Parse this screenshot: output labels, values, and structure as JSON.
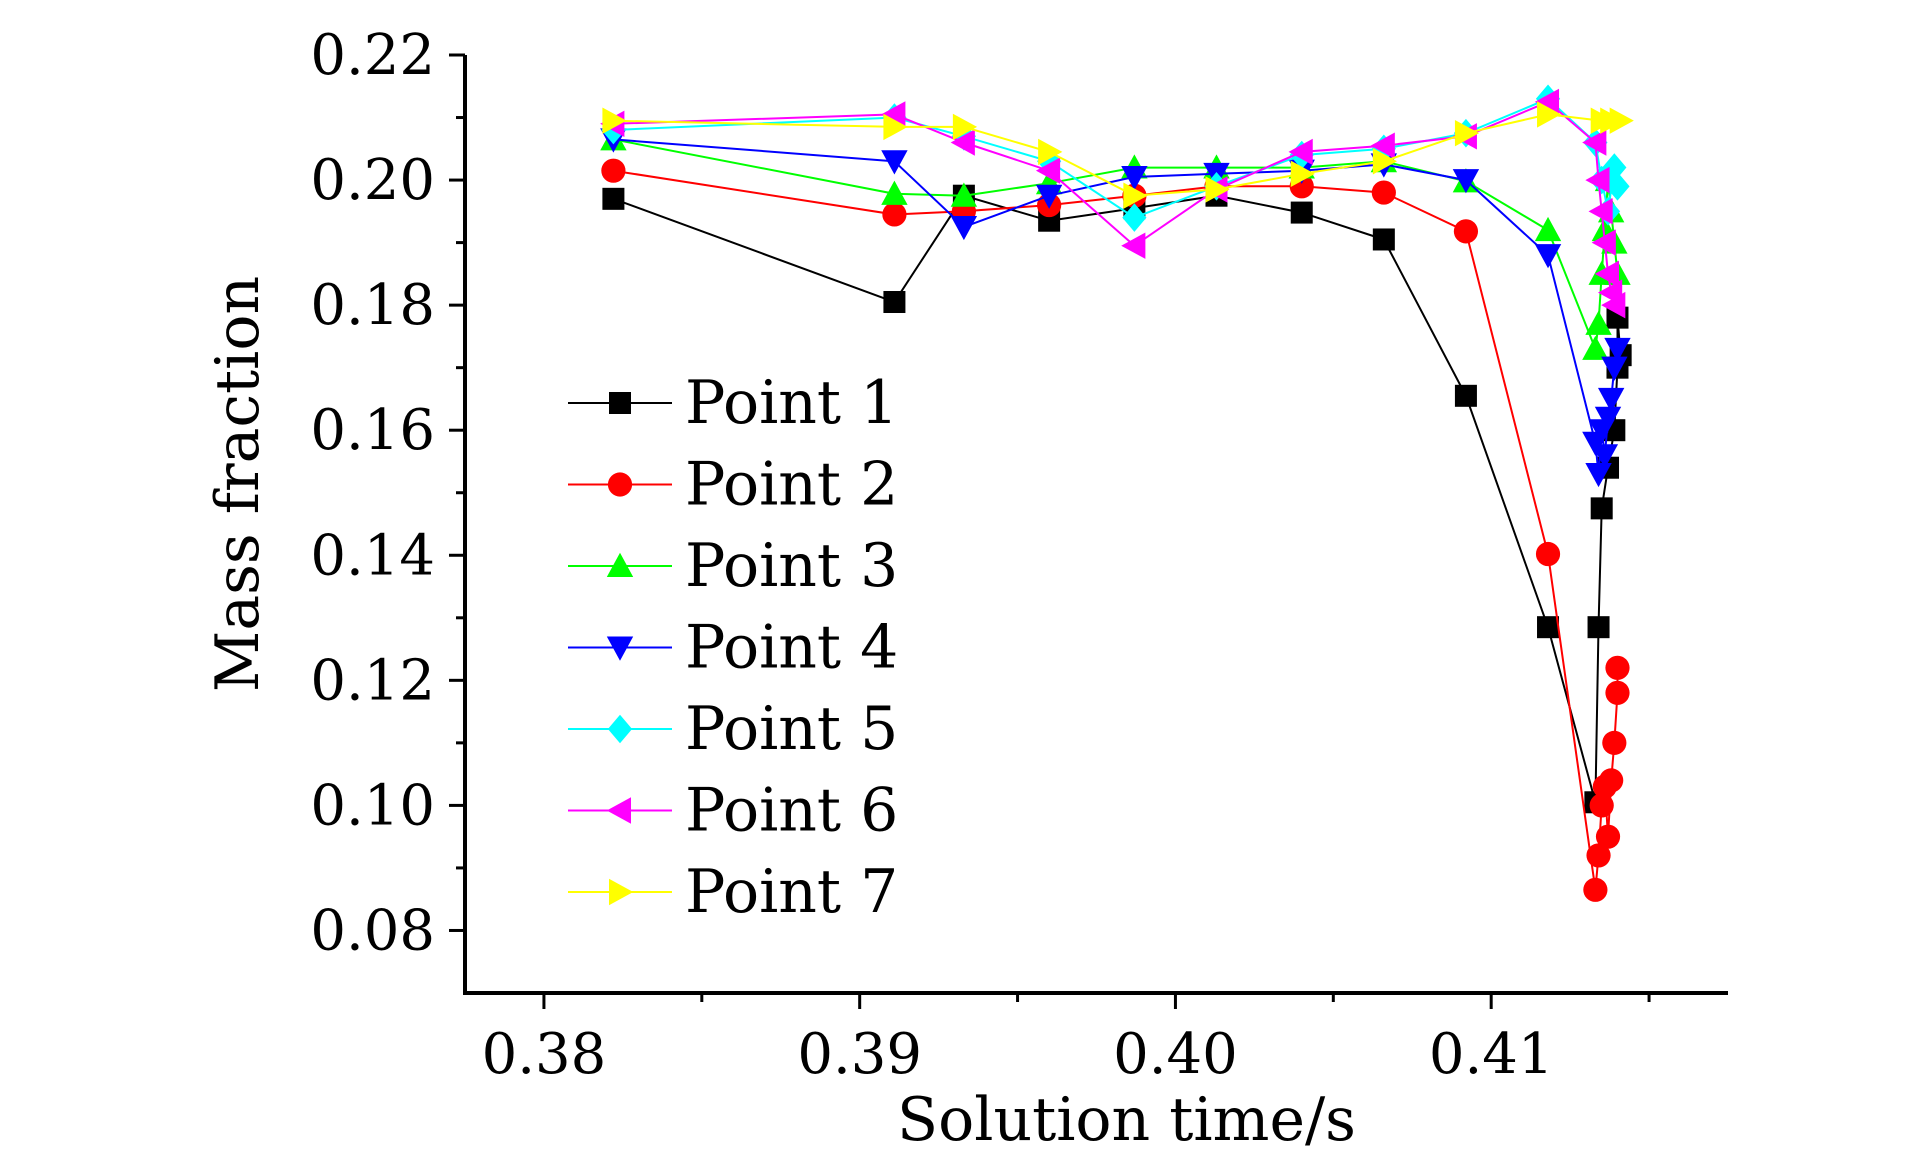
{
  "chart_data": {
    "type": "line",
    "xlabel": "Solution time/s",
    "ylabel": "Mass fraction",
    "xlim": [
      0.3775,
      0.4175
    ],
    "ylim": [
      0.07,
      0.22
    ],
    "x_ticks": [
      {
        "value": 0.38,
        "label": "0.38"
      },
      {
        "value": 0.39,
        "label": "0.39"
      },
      {
        "value": 0.4,
        "label": "0.40"
      },
      {
        "value": 0.41,
        "label": "0.41"
      }
    ],
    "y_ticks": [
      {
        "value": 0.08,
        "label": "0.08"
      },
      {
        "value": 0.1,
        "label": "0.10"
      },
      {
        "value": 0.12,
        "label": "0.12"
      },
      {
        "value": 0.14,
        "label": "0.14"
      },
      {
        "value": 0.16,
        "label": "0.16"
      },
      {
        "value": 0.18,
        "label": "0.18"
      },
      {
        "value": 0.2,
        "label": "0.20"
      },
      {
        "value": 0.22,
        "label": "0.22"
      }
    ],
    "grid": false,
    "legend_position": "left-middle",
    "series": [
      {
        "name": "Point 1",
        "color": "#000000",
        "marker": "square",
        "x": [
          0.3822,
          0.3911,
          0.3933,
          0.396,
          0.3987,
          0.4013,
          0.404,
          0.4066,
          0.4092,
          0.4118,
          0.4133,
          0.4134,
          0.4135,
          0.4137,
          0.4139,
          0.414,
          0.414,
          0.4141
        ],
        "y": [
          0.197,
          0.1805,
          0.1975,
          0.1935,
          0.1955,
          0.1975,
          0.1948,
          0.1905,
          0.1655,
          0.1285,
          0.1005,
          0.1285,
          0.1475,
          0.154,
          0.16,
          0.17,
          0.178,
          0.172
        ]
      },
      {
        "name": "Point 2",
        "color": "#ff0000",
        "marker": "circle",
        "x": [
          0.3822,
          0.3911,
          0.3933,
          0.396,
          0.3987,
          0.4013,
          0.404,
          0.4066,
          0.4092,
          0.4118,
          0.4133,
          0.4134,
          0.4135,
          0.4136,
          0.4137,
          0.4138,
          0.4139,
          0.414,
          0.414
        ],
        "y": [
          0.2015,
          0.1945,
          0.195,
          0.196,
          0.1975,
          0.199,
          0.199,
          0.198,
          0.1918,
          0.1402,
          0.0865,
          0.092,
          0.1,
          0.103,
          0.095,
          0.104,
          0.11,
          0.118,
          0.122
        ]
      },
      {
        "name": "Point 3",
        "color": "#00ff00",
        "marker": "triangle-up",
        "x": [
          0.3822,
          0.3911,
          0.3933,
          0.396,
          0.3987,
          0.4013,
          0.404,
          0.4066,
          0.4092,
          0.4118,
          0.4133,
          0.4134,
          0.4135,
          0.4136,
          0.4137,
          0.4138,
          0.4139,
          0.414
        ],
        "y": [
          0.2065,
          0.1978,
          0.1975,
          0.1995,
          0.202,
          0.202,
          0.202,
          0.203,
          0.1998,
          0.192,
          0.173,
          0.177,
          0.185,
          0.192,
          0.2,
          0.195,
          0.19,
          0.185
        ]
      },
      {
        "name": "Point 4",
        "color": "#0000ff",
        "marker": "triangle-down",
        "x": [
          0.3822,
          0.3911,
          0.3933,
          0.396,
          0.3987,
          0.4013,
          0.404,
          0.4066,
          0.4092,
          0.4118,
          0.4133,
          0.4134,
          0.4135,
          0.4136,
          0.4137,
          0.4138,
          0.4139,
          0.414
        ],
        "y": [
          0.2065,
          0.203,
          0.1925,
          0.1975,
          0.2005,
          0.201,
          0.2015,
          0.2025,
          0.2,
          0.188,
          0.158,
          0.153,
          0.16,
          0.156,
          0.162,
          0.165,
          0.17,
          0.173
        ]
      },
      {
        "name": "Point 5",
        "color": "#00ffff",
        "marker": "diamond",
        "x": [
          0.3822,
          0.3911,
          0.3933,
          0.396,
          0.3987,
          0.4013,
          0.404,
          0.4066,
          0.4092,
          0.4118,
          0.4133,
          0.4135,
          0.4137,
          0.4139,
          0.414
        ],
        "y": [
          0.208,
          0.21,
          0.207,
          0.203,
          0.194,
          0.199,
          0.204,
          0.205,
          0.2075,
          0.213,
          0.206,
          0.2,
          0.195,
          0.202,
          0.199
        ]
      },
      {
        "name": "Point 6",
        "color": "#ff00ff",
        "marker": "triangle-left",
        "x": [
          0.3822,
          0.3911,
          0.3933,
          0.396,
          0.3987,
          0.4013,
          0.404,
          0.4066,
          0.4092,
          0.4118,
          0.4133,
          0.4134,
          0.4135,
          0.4136,
          0.4137,
          0.4138,
          0.4139
        ],
        "y": [
          0.209,
          0.2105,
          0.206,
          0.2015,
          0.1895,
          0.1985,
          0.2045,
          0.2055,
          0.207,
          0.2125,
          0.206,
          0.2,
          0.195,
          0.19,
          0.185,
          0.182,
          0.18
        ]
      },
      {
        "name": "Point 7",
        "color": "#ffff00",
        "marker": "triangle-right",
        "x": [
          0.3822,
          0.3911,
          0.3933,
          0.396,
          0.3987,
          0.4013,
          0.404,
          0.4066,
          0.4092,
          0.4118,
          0.4135,
          0.4138,
          0.4141
        ],
        "y": [
          0.2095,
          0.2085,
          0.2085,
          0.2045,
          0.1975,
          0.1985,
          0.201,
          0.203,
          0.2075,
          0.2105,
          0.2095,
          0.2095,
          0.2095
        ]
      }
    ]
  }
}
